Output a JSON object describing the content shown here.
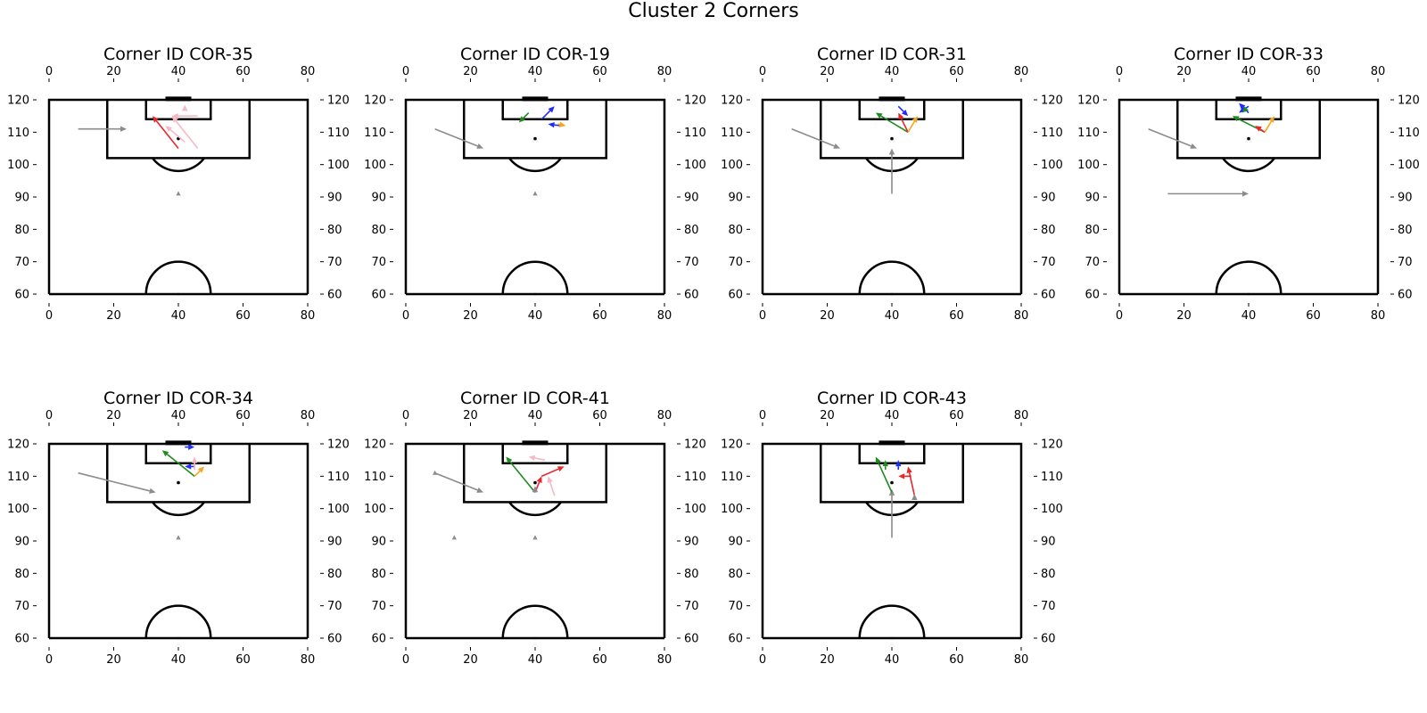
{
  "title": "Cluster 2 Corners",
  "colors": {
    "pitch_line": "#000000",
    "gray": "#8c8c8c",
    "red": "#e8262b",
    "blue": "#1f2bff",
    "green": "#1e8c1e",
    "orange": "#f5a623",
    "pink": "#f5b8c4",
    "ball": "#000000"
  },
  "chart_data": [
    {
      "type": "pitch",
      "title": "Corner ID COR-35",
      "xlim": [
        0,
        80
      ],
      "ylim": [
        60,
        120
      ],
      "xticks": [
        "0",
        "20",
        "40",
        "60",
        "80"
      ],
      "yticks": [
        "60",
        "70",
        "80",
        "90",
        "100",
        "110",
        "120"
      ],
      "markers": [
        {
          "x": 40,
          "y": 108,
          "kind": "dot"
        },
        {
          "x": 40,
          "y": 91,
          "kind": "tri"
        }
      ],
      "arrows": [
        {
          "color": "gray",
          "x1": 9,
          "y1": 111,
          "x2": 24,
          "y2": 111
        },
        {
          "color": "red",
          "x1": 40,
          "y1": 105,
          "x2": 32,
          "y2": 115
        },
        {
          "color": "pink",
          "x1": 46,
          "y1": 105,
          "x2": 38,
          "y2": 115
        },
        {
          "color": "pink",
          "x1": 42,
          "y1": 107,
          "x2": 36,
          "y2": 112
        },
        {
          "color": "pink",
          "x1": 46,
          "y1": 115,
          "x2": 38,
          "y2": 115
        },
        {
          "color": "pink",
          "x1": 42,
          "y1": 117,
          "x2": 42,
          "y2": 118.5
        }
      ]
    },
    {
      "type": "pitch",
      "title": "Corner ID COR-19",
      "xlim": [
        0,
        80
      ],
      "ylim": [
        60,
        120
      ],
      "xticks": [
        "0",
        "20",
        "40",
        "60",
        "80"
      ],
      "yticks": [
        "60",
        "70",
        "80",
        "90",
        "100",
        "110",
        "120"
      ],
      "markers": [
        {
          "x": 40,
          "y": 108,
          "kind": "dot"
        },
        {
          "x": 40,
          "y": 91,
          "kind": "tri"
        }
      ],
      "arrows": [
        {
          "color": "gray",
          "x1": 9,
          "y1": 111,
          "x2": 24,
          "y2": 105
        },
        {
          "color": "green",
          "x1": 38,
          "y1": 116,
          "x2": 35,
          "y2": 113
        },
        {
          "color": "blue",
          "x1": 42,
          "y1": 114,
          "x2": 46,
          "y2": 118
        },
        {
          "color": "blue",
          "x1": 48,
          "y1": 112,
          "x2": 44,
          "y2": 112.5
        },
        {
          "color": "orange",
          "x1": 47,
          "y1": 112.5,
          "x2": 49.5,
          "y2": 112
        }
      ]
    },
    {
      "type": "pitch",
      "title": "Corner ID COR-31",
      "xlim": [
        0,
        80
      ],
      "ylim": [
        60,
        120
      ],
      "xticks": [
        "0",
        "20",
        "40",
        "60",
        "80"
      ],
      "yticks": [
        "60",
        "70",
        "80",
        "90",
        "100",
        "110",
        "120"
      ],
      "markers": [
        {
          "x": 40,
          "y": 108,
          "kind": "dot"
        }
      ],
      "arrows": [
        {
          "color": "gray",
          "x1": 9,
          "y1": 111,
          "x2": 24,
          "y2": 105
        },
        {
          "color": "gray",
          "x1": 40,
          "y1": 91,
          "x2": 40,
          "y2": 105
        },
        {
          "color": "green",
          "x1": 45,
          "y1": 110,
          "x2": 35,
          "y2": 116
        },
        {
          "color": "red",
          "x1": 45,
          "y1": 110,
          "x2": 42,
          "y2": 116
        },
        {
          "color": "orange",
          "x1": 45,
          "y1": 110,
          "x2": 48,
          "y2": 115
        },
        {
          "color": "blue",
          "x1": 42,
          "y1": 118,
          "x2": 45,
          "y2": 115
        }
      ]
    },
    {
      "type": "pitch",
      "title": "Corner ID COR-33",
      "xlim": [
        0,
        80
      ],
      "ylim": [
        60,
        120
      ],
      "xticks": [
        "0",
        "20",
        "40",
        "60",
        "80"
      ],
      "yticks": [
        "60",
        "70",
        "80",
        "90",
        "100",
        "110",
        "120"
      ],
      "markers": [
        {
          "x": 40,
          "y": 108,
          "kind": "dot"
        }
      ],
      "arrows": [
        {
          "color": "gray",
          "x1": 9,
          "y1": 111,
          "x2": 24,
          "y2": 105
        },
        {
          "color": "gray",
          "x1": 15,
          "y1": 91,
          "x2": 40,
          "y2": 91
        },
        {
          "color": "green",
          "x1": 45,
          "y1": 110,
          "x2": 35,
          "y2": 115
        },
        {
          "color": "red",
          "x1": 45,
          "y1": 110,
          "x2": 42,
          "y2": 112
        },
        {
          "color": "orange",
          "x1": 45,
          "y1": 110,
          "x2": 48,
          "y2": 115
        },
        {
          "color": "blue",
          "x1": 40,
          "y1": 116,
          "x2": 37,
          "y2": 119
        },
        {
          "color": "blue",
          "x1": 40,
          "y1": 118,
          "x2": 37,
          "y2": 116
        },
        {
          "color": "green",
          "x1": 39,
          "y1": 117,
          "x2": 38,
          "y2": 116
        }
      ]
    },
    {
      "type": "pitch",
      "title": "Corner ID COR-34",
      "xlim": [
        0,
        80
      ],
      "ylim": [
        60,
        120
      ],
      "xticks": [
        "0",
        "20",
        "40",
        "60",
        "80"
      ],
      "yticks": [
        "60",
        "70",
        "80",
        "90",
        "100",
        "110",
        "120"
      ],
      "markers": [
        {
          "x": 40,
          "y": 108,
          "kind": "dot"
        },
        {
          "x": 40,
          "y": 91,
          "kind": "tri"
        }
      ],
      "arrows": [
        {
          "color": "gray",
          "x1": 9,
          "y1": 111,
          "x2": 33,
          "y2": 105
        },
        {
          "color": "green",
          "x1": 45,
          "y1": 110,
          "x2": 35,
          "y2": 118
        },
        {
          "color": "orange",
          "x1": 45,
          "y1": 110,
          "x2": 48,
          "y2": 113
        },
        {
          "color": "blue",
          "x1": 42,
          "y1": 119,
          "x2": 45,
          "y2": 119
        },
        {
          "color": "blue",
          "x1": 45,
          "y1": 113,
          "x2": 42,
          "y2": 113
        },
        {
          "color": "pink",
          "x1": 45,
          "y1": 112,
          "x2": 45,
          "y2": 116
        }
      ]
    },
    {
      "type": "pitch",
      "title": "Corner ID COR-41",
      "xlim": [
        0,
        80
      ],
      "ylim": [
        60,
        120
      ],
      "xticks": [
        "0",
        "20",
        "40",
        "60",
        "80"
      ],
      "yticks": [
        "60",
        "70",
        "80",
        "90",
        "100",
        "110",
        "120"
      ],
      "markers": [
        {
          "x": 40,
          "y": 108,
          "kind": "dot"
        },
        {
          "x": 40,
          "y": 91,
          "kind": "tri"
        },
        {
          "x": 15,
          "y": 91,
          "kind": "tri"
        },
        {
          "x": 9,
          "y": 111,
          "kind": "tri"
        }
      ],
      "arrows": [
        {
          "color": "gray",
          "x1": 9,
          "y1": 111,
          "x2": 24,
          "y2": 105
        },
        {
          "color": "green",
          "x1": 40,
          "y1": 105,
          "x2": 31,
          "y2": 116
        },
        {
          "color": "red",
          "x1": 40,
          "y1": 105,
          "x2": 42,
          "y2": 110
        },
        {
          "color": "red",
          "x1": 42,
          "y1": 110,
          "x2": 49,
          "y2": 113
        },
        {
          "color": "pink",
          "x1": 46,
          "y1": 104,
          "x2": 44,
          "y2": 110
        },
        {
          "color": "pink",
          "x1": 43,
          "y1": 115,
          "x2": 38,
          "y2": 116
        },
        {
          "color": "gray",
          "x1": 40,
          "y1": 105,
          "x2": 40,
          "y2": 107
        }
      ]
    },
    {
      "type": "pitch",
      "title": "Corner ID COR-43",
      "xlim": [
        0,
        80
      ],
      "ylim": [
        60,
        120
      ],
      "xticks": [
        "0",
        "20",
        "40",
        "60",
        "80"
      ],
      "yticks": [
        "60",
        "70",
        "80",
        "90",
        "100",
        "110",
        "120"
      ],
      "markers": [
        {
          "x": 40,
          "y": 108,
          "kind": "dot"
        }
      ],
      "arrows": [
        {
          "color": "gray",
          "x1": 40,
          "y1": 91,
          "x2": 40,
          "y2": 106
        },
        {
          "color": "green",
          "x1": 40,
          "y1": 105,
          "x2": 35,
          "y2": 116
        },
        {
          "color": "green",
          "x1": 38,
          "y1": 112,
          "x2": 38,
          "y2": 115
        },
        {
          "color": "blue",
          "x1": 42,
          "y1": 112,
          "x2": 42,
          "y2": 115
        },
        {
          "color": "red",
          "x1": 46,
          "y1": 110,
          "x2": 42,
          "y2": 110
        },
        {
          "color": "red",
          "x1": 47,
          "y1": 104,
          "x2": 45,
          "y2": 113
        },
        {
          "color": "gray",
          "x1": 47,
          "y1": 104,
          "x2": 47,
          "y2": 104.6
        }
      ]
    }
  ]
}
